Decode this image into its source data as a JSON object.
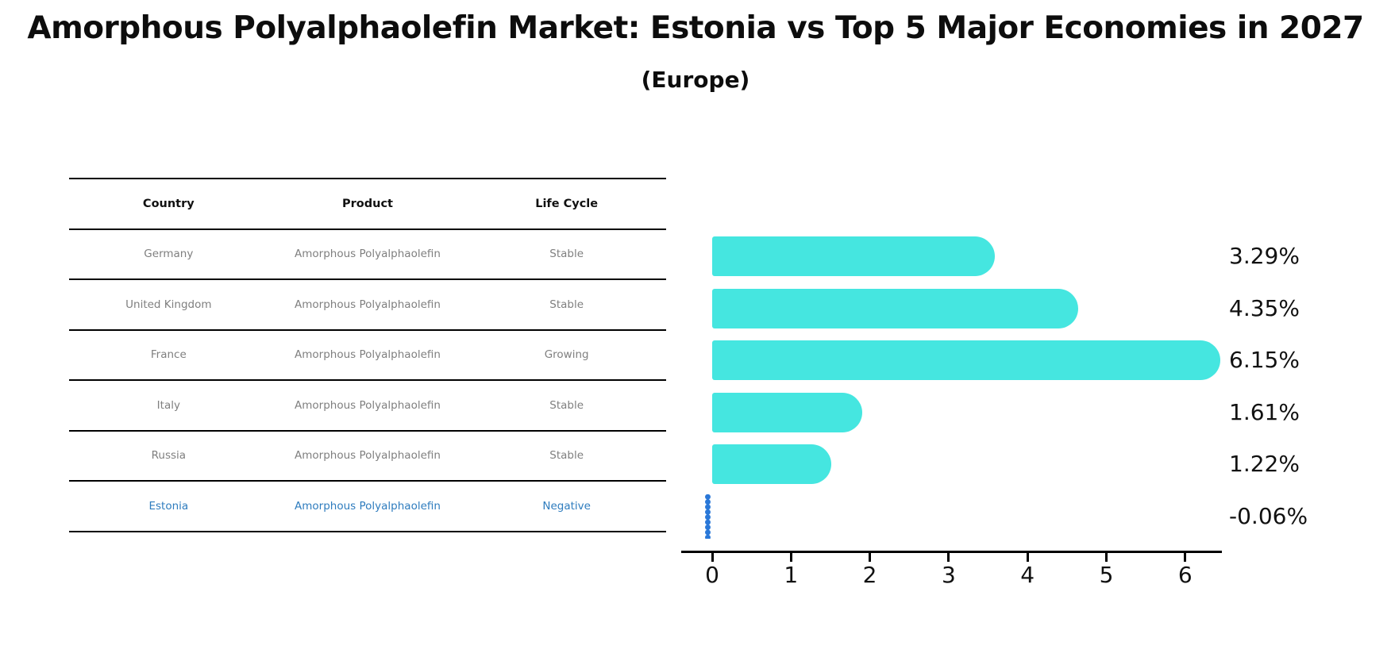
{
  "title": "Amorphous Polyalphaolefin Market: Estonia vs Top 5 Major Economies in 2027",
  "subtitle": "(Europe)",
  "table": {
    "headers": [
      "Country",
      "Product",
      "Life Cycle"
    ],
    "rows": [
      {
        "country": "Germany",
        "product": "Amorphous Polyalphaolefin",
        "life_cycle": "Stable",
        "highlighted": false
      },
      {
        "country": "United Kingdom",
        "product": "Amorphous Polyalphaolefin",
        "life_cycle": "Stable",
        "highlighted": false
      },
      {
        "country": "France",
        "product": "Amorphous Polyalphaolefin",
        "life_cycle": "Growing",
        "highlighted": false
      },
      {
        "country": "Italy",
        "product": "Amorphous Polyalphaolefin",
        "life_cycle": "Stable",
        "highlighted": false
      },
      {
        "country": "Russia",
        "product": "Amorphous Polyalphaolefin",
        "life_cycle": "Stable",
        "highlighted": false
      },
      {
        "country": "Estonia",
        "product": "Amorphous Polyalphaolefin",
        "life_cycle": "Negative",
        "highlighted": true
      }
    ]
  },
  "chart_data": {
    "type": "bar",
    "orientation": "horizontal",
    "categories": [
      "Germany",
      "United Kingdom",
      "France",
      "Italy",
      "Russia",
      "Estonia"
    ],
    "values": [
      3.29,
      4.35,
      6.15,
      1.61,
      1.22,
      -0.06
    ],
    "value_labels": [
      "3.29%",
      "4.35%",
      "6.15%",
      "1.61%",
      "1.22%",
      "-0.06%"
    ],
    "marker_styles": [
      "bar",
      "bar",
      "bar",
      "bar",
      "bar",
      "dots"
    ],
    "xticks": [
      0,
      1,
      2,
      3,
      4,
      5,
      6
    ],
    "xlim": [
      -0.4,
      6.45
    ],
    "grid": false,
    "legend": false,
    "title": "",
    "xlabel": "",
    "ylabel": "",
    "bar_color": "#45E6E0",
    "dot_marker_color": "#2A78D8",
    "highlight_text_color": "#2E7CBE",
    "axis_color": "#000000",
    "value_label_color": "#111111"
  },
  "colors": {
    "table_header_text": "#111111",
    "table_body_text": "#7F7F7F",
    "background": "#FFFFFF"
  }
}
